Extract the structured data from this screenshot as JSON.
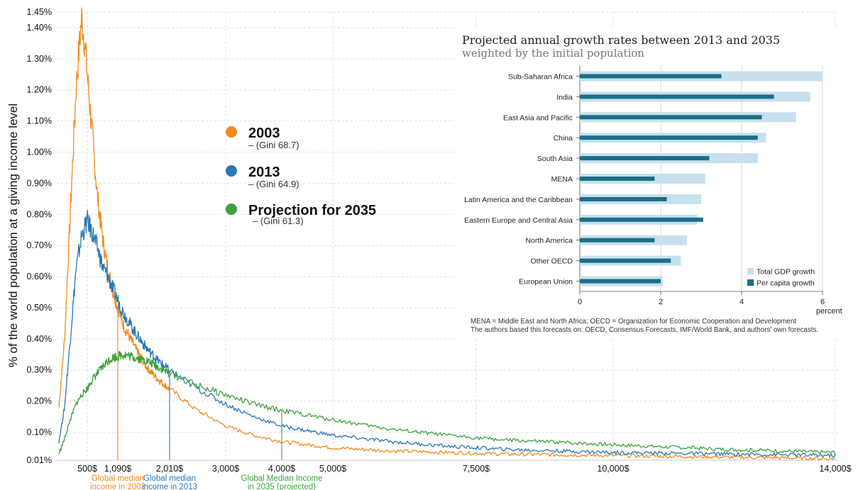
{
  "chart_data": [
    {
      "type": "line",
      "ylabel": "% of the world population at a giving income level",
      "ylim": [
        0.01,
        1.45
      ],
      "y_ticks": [
        "0.01%",
        "0.10%",
        "0.20%",
        "0.30%",
        "0.40%",
        "0.50%",
        "0.60%",
        "0.70%",
        "0.80%",
        "0.90%",
        "1.00%",
        "1.10%",
        "1.20%",
        "1.30%",
        "1.40%",
        "1.45%"
      ],
      "y_tick_values": [
        0.01,
        0.1,
        0.2,
        0.3,
        0.4,
        0.5,
        0.6,
        0.7,
        0.8,
        0.9,
        1.0,
        1.1,
        1.2,
        1.3,
        1.4,
        1.45
      ],
      "x_ticks": [
        {
          "value": 500,
          "label": "500$"
        },
        {
          "value": 3000,
          "label": "3,000$"
        },
        {
          "value": 5000,
          "label": "5,000$"
        },
        {
          "value": 7500,
          "label": "7,500$"
        },
        {
          "value": 10000,
          "label": "10,000$"
        },
        {
          "value": 14000,
          "label": "14,000$"
        }
      ],
      "series": [
        {
          "name": "2003",
          "sub": "– (Gini 68.7)",
          "color": "#f28a1e",
          "x": [
            0,
            100,
            200,
            300,
            350,
            400,
            450,
            500,
            600,
            700,
            800,
            900,
            1000,
            1200,
            1400,
            1600,
            1800,
            2000,
            2500,
            3000,
            3500,
            4000,
            5000,
            6000,
            7000,
            8000,
            10000,
            12000,
            14000
          ],
          "y": [
            0.18,
            0.4,
            0.8,
            1.2,
            1.32,
            1.43,
            1.36,
            1.25,
            1.05,
            0.85,
            0.72,
            0.62,
            0.55,
            0.44,
            0.37,
            0.31,
            0.27,
            0.24,
            0.17,
            0.12,
            0.09,
            0.07,
            0.05,
            0.04,
            0.035,
            0.03,
            0.025,
            0.02,
            0.015
          ]
        },
        {
          "name": "2013",
          "sub": "– (Gini 64.9)",
          "color": "#2a77b4",
          "x": [
            0,
            100,
            200,
            300,
            400,
            500,
            600,
            700,
            800,
            900,
            1000,
            1200,
            1400,
            1600,
            1800,
            2000,
            2500,
            3000,
            3500,
            4000,
            5000,
            6000,
            7000,
            8000,
            10000,
            12000,
            14000
          ],
          "y": [
            0.07,
            0.18,
            0.4,
            0.62,
            0.73,
            0.78,
            0.74,
            0.69,
            0.63,
            0.6,
            0.56,
            0.48,
            0.42,
            0.37,
            0.33,
            0.3,
            0.24,
            0.19,
            0.15,
            0.12,
            0.09,
            0.07,
            0.055,
            0.045,
            0.035,
            0.03,
            0.025
          ]
        },
        {
          "name": "Projection for 2035",
          "sub": "– (Gini 61.3)",
          "color": "#3ca33a",
          "x": [
            0,
            100,
            200,
            300,
            400,
            500,
            600,
            700,
            800,
            900,
            1000,
            1200,
            1400,
            1600,
            1800,
            2000,
            2500,
            3000,
            3500,
            4000,
            5000,
            6000,
            7000,
            8000,
            10000,
            12000,
            14000
          ],
          "y": [
            0.03,
            0.08,
            0.14,
            0.19,
            0.22,
            0.24,
            0.27,
            0.29,
            0.31,
            0.33,
            0.34,
            0.35,
            0.34,
            0.33,
            0.31,
            0.29,
            0.25,
            0.22,
            0.19,
            0.17,
            0.14,
            0.11,
            0.09,
            0.075,
            0.06,
            0.045,
            0.035
          ]
        }
      ],
      "annotations": [
        {
          "x": 1090,
          "value_label": "1,090$",
          "text": [
            "Global median",
            "income in 2003"
          ],
          "color": "#f28a1e"
        },
        {
          "x": 2010,
          "value_label": "2,010$",
          "text": [
            "Global median",
            "income in 2013"
          ],
          "color": "#2a77b4"
        },
        {
          "x": 4000,
          "value_label": "4,000$",
          "text": [
            "Global Median Income",
            "in 2035 (projected)"
          ],
          "color": "#3ca33a"
        }
      ],
      "grid": true,
      "legend": "center"
    },
    {
      "type": "bar",
      "title": "Projected annual growth rates between 2013 and 2035",
      "subtitle": "weighted by the initial population",
      "categories": [
        "Sub-Saharan Africa",
        "India",
        "East Asia and Pacific",
        "China",
        "South Asia",
        "MENA",
        "Latin America and the Caribbean",
        "Eastern Europe and Central Asia",
        "North America",
        "Other OECD",
        "European Union"
      ],
      "series": [
        {
          "name": "Total GDP growth",
          "color": "#c7e0ee",
          "values": [
            6.0,
            5.7,
            5.35,
            4.6,
            4.4,
            3.1,
            3.0,
            2.9,
            2.65,
            2.5,
            2.05
          ]
        },
        {
          "name": "Per capita growth",
          "color": "#1b6e87",
          "values": [
            3.5,
            4.8,
            4.5,
            4.4,
            3.2,
            1.85,
            2.15,
            3.05,
            1.85,
            2.25,
            2.0
          ]
        }
      ],
      "xlim": [
        0,
        6
      ],
      "x_ticks": [
        0,
        2,
        4,
        6
      ],
      "xlabel": "percent",
      "legend": "bottom-right",
      "footnotes": [
        "MENA = Middle East and North Africa; OECD = Organization for Economic Cooperation and Development",
        "The authors based this forecasts on: OECD, Consensus Forecasts, IMF/World Bank, and authors' own forecasts."
      ]
    }
  ]
}
